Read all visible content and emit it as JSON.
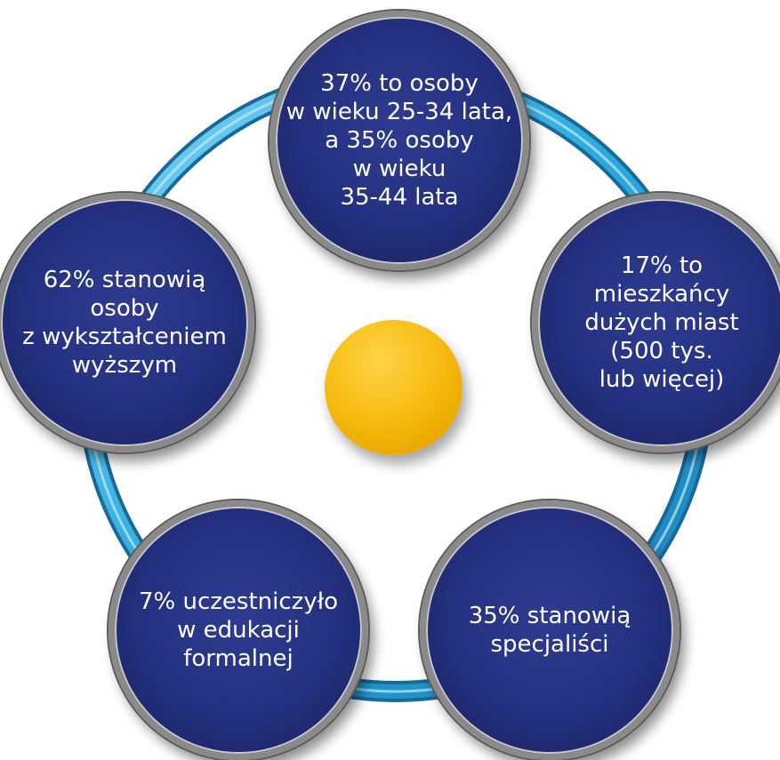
{
  "diagram": {
    "nodes": [
      {
        "text": "37% to osoby\nw wieku 25-34 lata,\na 35% osoby\nw wieku\n35-44 lata"
      },
      {
        "text": "17% to\nmieszkańcy\ndużych miast\n(500 tys.\nlub więcej)"
      },
      {
        "text": "35% stanowią\nspecjaliści"
      },
      {
        "text": "7% uczestniczyło\nw edukacji\nformalnej"
      },
      {
        "text": "62% stanowią\nosoby\nz wykształceniem\nwyższym"
      }
    ],
    "colors": {
      "node_fill": "#24307f",
      "node_border": "#8a8a8a",
      "ring": "#2aa8dc",
      "center": "#f7bd12",
      "text": "#ffffff"
    }
  }
}
